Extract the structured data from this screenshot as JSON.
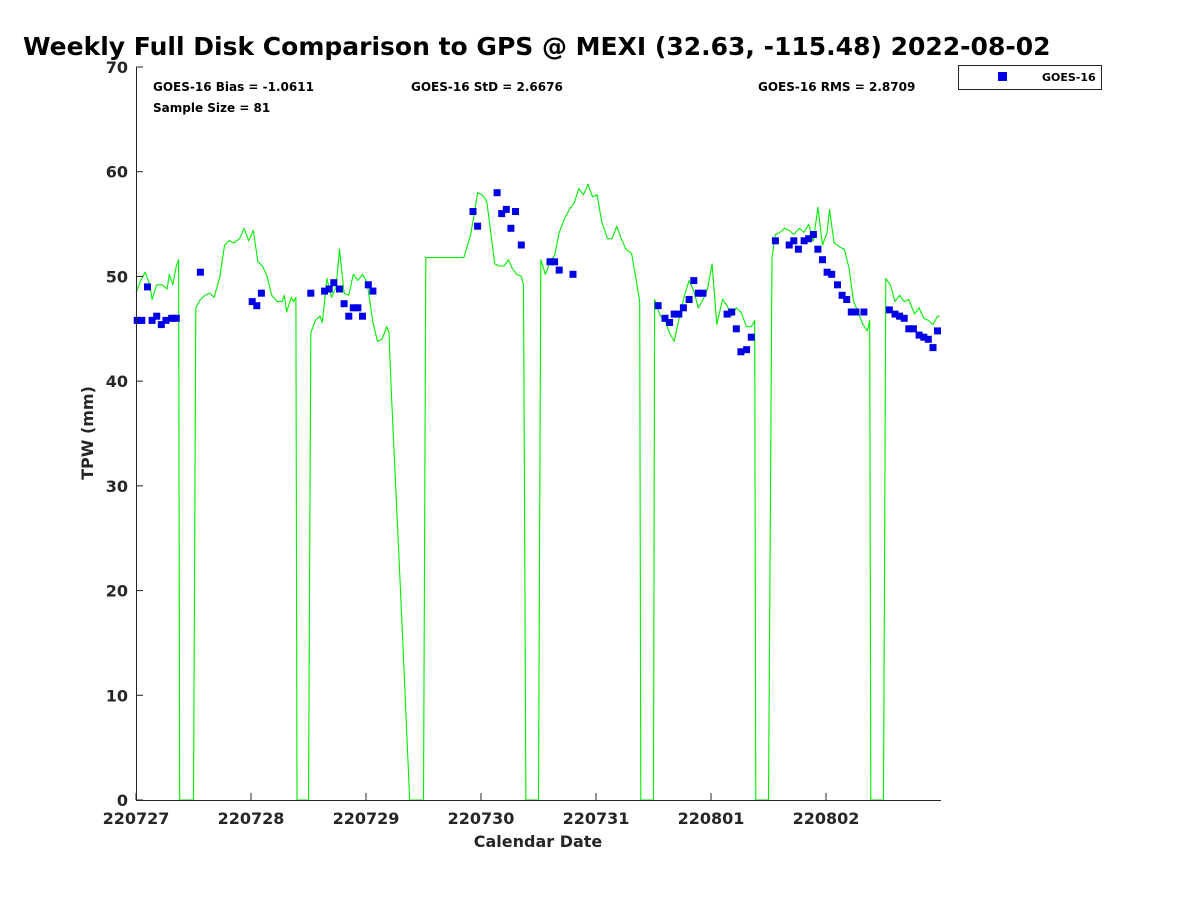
{
  "chart_data": {
    "type": "scatter",
    "title": "Weekly Full Disk Comparison to GPS @ MEXI (32.63, -115.48) 2022-08-02",
    "xlabel": "Calendar Date",
    "ylabel": "TPW (mm)",
    "xlim": [
      220727,
      220804
    ],
    "ylim": [
      0,
      70
    ],
    "x_ticks": [
      "220727",
      "220728",
      "220729",
      "220730",
      "220731",
      "220801",
      "220802"
    ],
    "y_ticks": [
      "0",
      "10",
      "20",
      "30",
      "40",
      "50",
      "60",
      "70"
    ],
    "grid": false,
    "legend_position": "top-right (outside plot)",
    "stats": {
      "bias": "GOES-16 Bias = -1.0611",
      "std": "GOES-16 StD = 2.6676",
      "rms": "GOES-16 RMS = 2.8709",
      "sample_size": "Sample Size = 81"
    },
    "colors": {
      "goes": "#0000e6",
      "gps": "#00ee00",
      "axis": "#262626"
    },
    "series": [
      {
        "name": "GOES-16",
        "marker": "square",
        "points": [
          [
            0.01,
            45.8
          ],
          [
            0.05,
            45.8
          ],
          [
            0.1,
            49.0
          ],
          [
            0.14,
            45.8
          ],
          [
            0.18,
            46.2
          ],
          [
            0.22,
            45.4
          ],
          [
            0.26,
            45.8
          ],
          [
            0.31,
            46.0
          ],
          [
            0.35,
            46.0
          ],
          [
            0.56,
            50.4
          ],
          [
            1.01,
            47.6
          ],
          [
            1.05,
            47.2
          ],
          [
            1.09,
            48.4
          ],
          [
            1.52,
            48.4
          ],
          [
            1.64,
            48.6
          ],
          [
            1.68,
            48.8
          ],
          [
            1.72,
            49.4
          ],
          [
            1.77,
            48.8
          ],
          [
            1.81,
            47.4
          ],
          [
            1.85,
            46.2
          ],
          [
            1.89,
            47.0
          ],
          [
            1.93,
            47.0
          ],
          [
            1.97,
            46.2
          ],
          [
            2.02,
            49.2
          ],
          [
            2.06,
            48.6
          ],
          [
            2.93,
            56.2
          ],
          [
            2.97,
            54.8
          ],
          [
            3.14,
            58.0
          ],
          [
            3.18,
            56.0
          ],
          [
            3.22,
            56.4
          ],
          [
            3.26,
            54.6
          ],
          [
            3.3,
            56.2
          ],
          [
            3.35,
            53.0
          ],
          [
            3.6,
            51.4
          ],
          [
            3.64,
            51.4
          ],
          [
            3.68,
            50.6
          ],
          [
            3.8,
            50.2
          ],
          [
            4.54,
            47.2
          ],
          [
            4.6,
            46.0
          ],
          [
            4.64,
            45.6
          ],
          [
            4.68,
            46.4
          ],
          [
            4.72,
            46.4
          ],
          [
            4.76,
            47.0
          ],
          [
            4.81,
            47.8
          ],
          [
            4.85,
            49.6
          ],
          [
            4.89,
            48.4
          ],
          [
            4.93,
            48.4
          ],
          [
            5.14,
            46.4
          ],
          [
            5.18,
            46.6
          ],
          [
            5.22,
            45.0
          ],
          [
            5.26,
            42.8
          ],
          [
            5.31,
            43.0
          ],
          [
            5.35,
            44.2
          ],
          [
            5.56,
            53.4
          ],
          [
            5.68,
            53.0
          ],
          [
            5.72,
            53.4
          ],
          [
            5.76,
            52.6
          ],
          [
            5.81,
            53.4
          ],
          [
            5.85,
            53.6
          ],
          [
            5.89,
            54.0
          ],
          [
            5.93,
            52.6
          ],
          [
            5.97,
            51.6
          ],
          [
            6.01,
            50.4
          ],
          [
            6.05,
            50.2
          ],
          [
            6.1,
            49.2
          ],
          [
            6.14,
            48.2
          ],
          [
            6.18,
            47.8
          ],
          [
            6.22,
            46.6
          ],
          [
            6.26,
            46.6
          ],
          [
            6.33,
            46.6
          ],
          [
            6.55,
            46.8
          ],
          [
            6.6,
            46.4
          ],
          [
            6.64,
            46.2
          ],
          [
            6.68,
            46.0
          ],
          [
            6.72,
            45.0
          ],
          [
            6.76,
            45.0
          ],
          [
            6.81,
            44.4
          ],
          [
            6.85,
            44.2
          ],
          [
            6.89,
            44.0
          ],
          [
            6.93,
            43.2
          ],
          [
            6.97,
            44.8
          ]
        ]
      },
      {
        "marker": "line",
        "points": [
          [
            0.0,
            48.4
          ],
          [
            0.04,
            49.6
          ],
          [
            0.08,
            50.4
          ],
          [
            0.12,
            49.2
          ],
          [
            0.14,
            47.8
          ],
          [
            0.18,
            49.2
          ],
          [
            0.23,
            49.2
          ],
          [
            0.27,
            48.8
          ],
          [
            0.29,
            50.2
          ],
          [
            0.32,
            49.2
          ],
          [
            0.35,
            51.0
          ],
          [
            0.37,
            51.6
          ],
          [
            0.38,
            0
          ],
          [
            0.5,
            0
          ],
          [
            0.52,
            47.0
          ],
          [
            0.56,
            47.8
          ],
          [
            0.6,
            48.2
          ],
          [
            0.64,
            48.4
          ],
          [
            0.68,
            48.0
          ],
          [
            0.73,
            50.0
          ],
          [
            0.77,
            53.0
          ],
          [
            0.81,
            53.4
          ],
          [
            0.85,
            53.2
          ],
          [
            0.9,
            53.6
          ],
          [
            0.94,
            54.6
          ],
          [
            0.98,
            53.4
          ],
          [
            1.02,
            54.4
          ],
          [
            1.06,
            51.4
          ],
          [
            1.1,
            51.0
          ],
          [
            1.14,
            50.0
          ],
          [
            1.18,
            48.2
          ],
          [
            1.23,
            47.6
          ],
          [
            1.27,
            47.6
          ],
          [
            1.29,
            48.2
          ],
          [
            1.31,
            46.6
          ],
          [
            1.35,
            48.0
          ],
          [
            1.37,
            47.6
          ],
          [
            1.39,
            48.0
          ],
          [
            1.4,
            0
          ],
          [
            1.5,
            0
          ],
          [
            1.52,
            44.6
          ],
          [
            1.56,
            45.8
          ],
          [
            1.6,
            46.2
          ],
          [
            1.62,
            45.6
          ],
          [
            1.66,
            49.8
          ],
          [
            1.7,
            48.0
          ],
          [
            1.74,
            49.0
          ],
          [
            1.77,
            52.6
          ],
          [
            1.81,
            48.4
          ],
          [
            1.85,
            48.2
          ],
          [
            1.89,
            50.2
          ],
          [
            1.93,
            49.6
          ],
          [
            1.97,
            50.2
          ],
          [
            2.01,
            49.4
          ],
          [
            2.06,
            45.6
          ],
          [
            2.1,
            43.8
          ],
          [
            2.14,
            44.0
          ],
          [
            2.18,
            45.2
          ],
          [
            2.2,
            44.6
          ],
          [
            2.22,
            39.0
          ],
          [
            2.3,
            20.0
          ],
          [
            2.36,
            5.0
          ],
          [
            2.38,
            0
          ],
          [
            2.5,
            0
          ],
          [
            2.52,
            51.8
          ],
          [
            2.85,
            51.8
          ],
          [
            2.91,
            54.0
          ],
          [
            2.95,
            56.6
          ],
          [
            2.97,
            58.0
          ],
          [
            3.01,
            57.8
          ],
          [
            3.05,
            57.2
          ],
          [
            3.08,
            54.6
          ],
          [
            3.12,
            51.2
          ],
          [
            3.16,
            51.0
          ],
          [
            3.2,
            51.0
          ],
          [
            3.24,
            51.6
          ],
          [
            3.27,
            50.8
          ],
          [
            3.31,
            50.2
          ],
          [
            3.35,
            50.0
          ],
          [
            3.37,
            49.2
          ],
          [
            3.39,
            0
          ],
          [
            3.5,
            0
          ],
          [
            3.52,
            51.6
          ],
          [
            3.56,
            50.2
          ],
          [
            3.6,
            51.4
          ],
          [
            3.64,
            52.0
          ],
          [
            3.68,
            54.2
          ],
          [
            3.73,
            55.6
          ],
          [
            3.77,
            56.4
          ],
          [
            3.81,
            57.0
          ],
          [
            3.85,
            58.4
          ],
          [
            3.89,
            57.8
          ],
          [
            3.93,
            58.8
          ],
          [
            3.97,
            57.6
          ],
          [
            4.01,
            57.8
          ],
          [
            4.05,
            55.2
          ],
          [
            4.1,
            53.6
          ],
          [
            4.14,
            53.6
          ],
          [
            4.18,
            54.8
          ],
          [
            4.22,
            53.6
          ],
          [
            4.26,
            52.6
          ],
          [
            4.31,
            52.2
          ],
          [
            4.35,
            49.6
          ],
          [
            4.38,
            47.6
          ],
          [
            4.39,
            0
          ],
          [
            4.5,
            0
          ],
          [
            4.51,
            47.8
          ],
          [
            4.56,
            46.2
          ],
          [
            4.6,
            45.8
          ],
          [
            4.64,
            44.6
          ],
          [
            4.68,
            43.8
          ],
          [
            4.73,
            46.4
          ],
          [
            4.77,
            48.2
          ],
          [
            4.81,
            49.6
          ],
          [
            4.85,
            48.6
          ],
          [
            4.89,
            47.0
          ],
          [
            4.93,
            47.8
          ],
          [
            4.97,
            48.8
          ],
          [
            5.01,
            51.2
          ],
          [
            5.05,
            45.4
          ],
          [
            5.1,
            47.8
          ],
          [
            5.14,
            47.2
          ],
          [
            5.18,
            46.2
          ],
          [
            5.22,
            47.0
          ],
          [
            5.26,
            46.6
          ],
          [
            5.31,
            45.2
          ],
          [
            5.35,
            45.2
          ],
          [
            5.38,
            45.8
          ],
          [
            5.39,
            0
          ],
          [
            5.5,
            0
          ],
          [
            5.53,
            51.8
          ],
          [
            5.56,
            54.0
          ],
          [
            5.6,
            54.2
          ],
          [
            5.64,
            54.6
          ],
          [
            5.68,
            54.4
          ],
          [
            5.72,
            54.0
          ],
          [
            5.77,
            54.6
          ],
          [
            5.81,
            54.2
          ],
          [
            5.85,
            55.0
          ],
          [
            5.89,
            53.4
          ],
          [
            5.93,
            56.6
          ],
          [
            5.97,
            53.0
          ],
          [
            6.01,
            54.2
          ],
          [
            6.03,
            56.4
          ],
          [
            6.07,
            53.2
          ],
          [
            6.12,
            52.8
          ],
          [
            6.16,
            52.6
          ],
          [
            6.2,
            50.8
          ],
          [
            6.24,
            47.6
          ],
          [
            6.28,
            46.6
          ],
          [
            6.32,
            45.4
          ],
          [
            6.36,
            44.8
          ],
          [
            6.38,
            45.8
          ],
          [
            6.39,
            0
          ],
          [
            6.5,
            0
          ],
          [
            6.52,
            49.8
          ],
          [
            6.56,
            49.2
          ],
          [
            6.6,
            47.6
          ],
          [
            6.64,
            48.2
          ],
          [
            6.68,
            47.6
          ],
          [
            6.72,
            47.8
          ],
          [
            6.77,
            46.4
          ],
          [
            6.81,
            47.0
          ],
          [
            6.85,
            46.0
          ],
          [
            6.89,
            45.8
          ],
          [
            6.93,
            45.4
          ],
          [
            6.97,
            46.2
          ],
          [
            6.99,
            46.2
          ]
        ]
      }
    ]
  }
}
